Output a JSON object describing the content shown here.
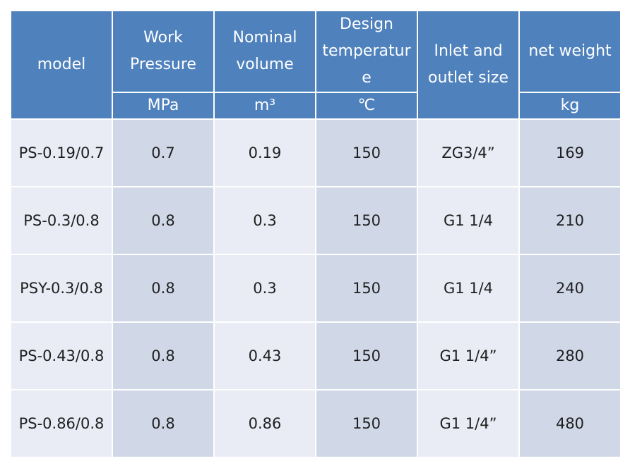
{
  "header": {
    "model": "model",
    "work_pressure": "Work\nPressure",
    "nominal_volume": "Nominal\nvolume",
    "design_temperature": "Design\ntemperatur\ne",
    "inlet_outlet": "Inlet and\noutlet size",
    "net_weight": "net weight"
  },
  "units": {
    "work_pressure": "MPa",
    "nominal_volume": "m³",
    "design_temperature": "℃",
    "net_weight": "kg"
  },
  "rows": [
    {
      "model": "PS-0.19/0.7",
      "pressure": "0.7",
      "volume": "0.19",
      "temperature": "150",
      "inlet_outlet": "ZG3/4”",
      "weight": "169"
    },
    {
      "model": "PS-0.3/0.8",
      "pressure": "0.8",
      "volume": "0.3",
      "temperature": "150",
      "inlet_outlet": "G1 1/4",
      "weight": "210"
    },
    {
      "model": "PSY-0.3/0.8",
      "pressure": "0.8",
      "volume": "0.3",
      "temperature": "150",
      "inlet_outlet": "G1 1/4",
      "weight": "240"
    },
    {
      "model": "PS-0.43/0.8",
      "pressure": "0.8",
      "volume": "0.43",
      "temperature": "150",
      "inlet_outlet": "G1 1/4”",
      "weight": "280"
    },
    {
      "model": "PS-0.86/0.8",
      "pressure": "0.8",
      "volume": "0.86",
      "temperature": "150",
      "inlet_outlet": "G1 1/4”",
      "weight": "480"
    }
  ],
  "colors": {
    "header_bg": "#4f81bd",
    "header_text": "#ffffff",
    "cell_light": "#e9ebf5",
    "cell_dark": "#d0d8e8"
  }
}
